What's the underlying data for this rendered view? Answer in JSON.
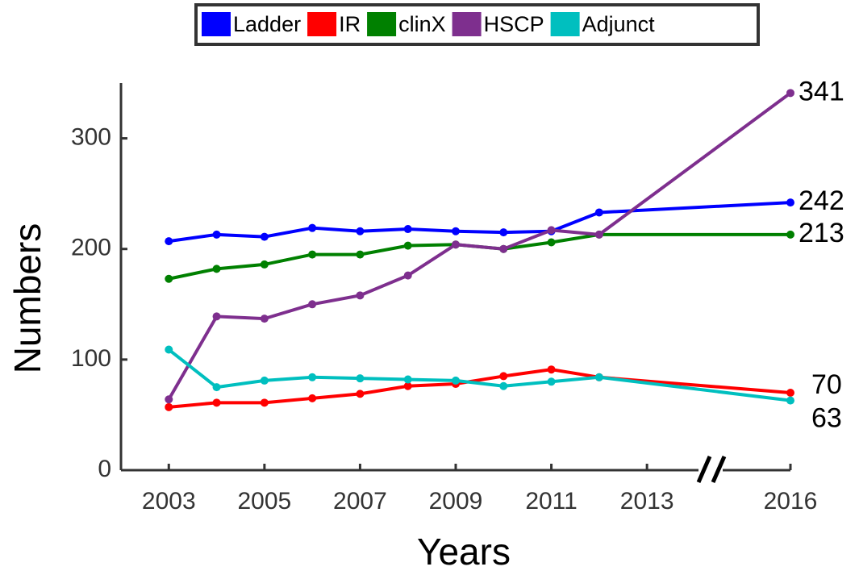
{
  "chart_data": {
    "type": "line",
    "x_label": "Years",
    "y_label": "Numbers",
    "x": [
      2003,
      2004,
      2005,
      2006,
      2007,
      2008,
      2009,
      2010,
      2011,
      2012,
      2016
    ],
    "series": [
      {
        "name": "Ladder",
        "color": "#0000ff",
        "values": [
          207,
          213,
          211,
          219,
          216,
          218,
          216,
          215,
          216,
          233,
          242
        ]
      },
      {
        "name": "IR",
        "color": "#ff0000",
        "values": [
          57,
          61,
          61,
          65,
          69,
          76,
          78,
          85,
          91,
          84,
          70
        ]
      },
      {
        "name": "clinX",
        "color": "#008000",
        "values": [
          173,
          182,
          186,
          195,
          195,
          203,
          204,
          200,
          206,
          213,
          213
        ]
      },
      {
        "name": "HSCP",
        "color": "#7e2f8e",
        "values": [
          64,
          139,
          137,
          150,
          158,
          176,
          204,
          200,
          217,
          213,
          341
        ]
      },
      {
        "name": "Adjunct",
        "color": "#00bfbf",
        "values": [
          109,
          75,
          81,
          84,
          83,
          82,
          81,
          76,
          80,
          84,
          63
        ]
      }
    ],
    "xlim": [
      2002,
      2016
    ],
    "xticks": [
      2003,
      2005,
      2007,
      2009,
      2011,
      2013,
      2016
    ],
    "ylim": [
      0,
      350
    ],
    "yticks": [
      0,
      100,
      200,
      300
    ],
    "legend": "top",
    "end_labels": true
  }
}
